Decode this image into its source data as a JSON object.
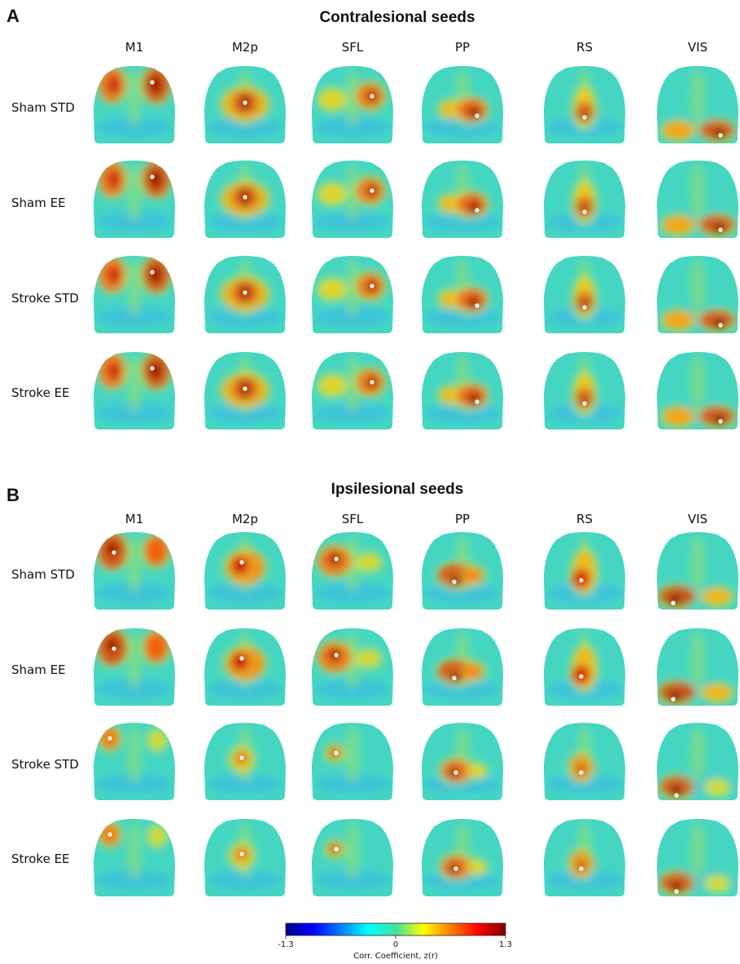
{
  "panels": [
    {
      "letter": "A",
      "title": "Contralesional seeds",
      "columns": [
        "M1",
        "M2p",
        "SFL",
        "PP",
        "RS",
        "VIS"
      ],
      "rows": [
        "Sham STD",
        "Sham EE",
        "Stroke STD",
        "Stroke EE"
      ]
    },
    {
      "letter": "B",
      "title": "Ipsilesional seeds",
      "columns": [
        "M1",
        "M2p",
        "SFL",
        "PP",
        "RS",
        "VIS"
      ],
      "rows": [
        "Sham STD",
        "Sham EE",
        "Stroke STD",
        "Stroke EE"
      ]
    }
  ],
  "colorbar": {
    "min_label": "-1.3",
    "mid_label": "0",
    "max_label": "1.3",
    "label": "Corr. Coefficient, z(r)",
    "colormap": "jet",
    "range": [
      -1.3,
      1.3
    ]
  },
  "seed_marker_color": "#ffffff"
}
